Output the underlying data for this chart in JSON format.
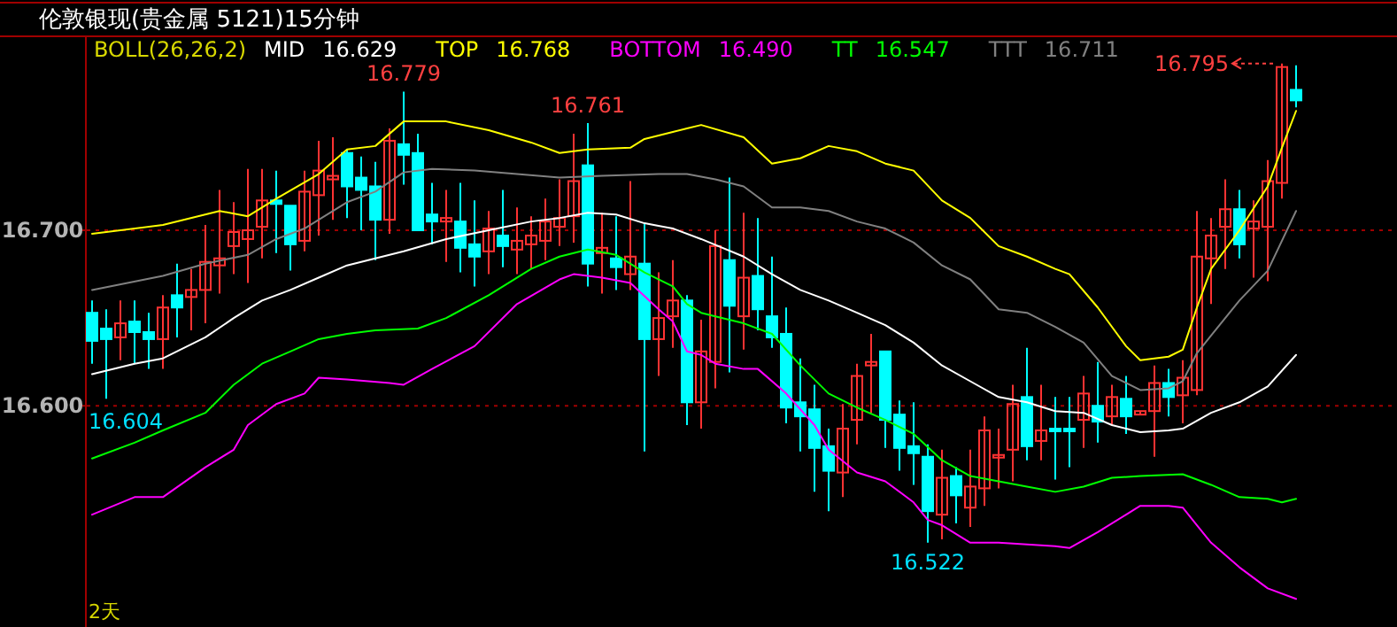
{
  "chart_data": {
    "type": "candlestick",
    "title": "伦敦银现(贵金属 5121)15分钟",
    "legend_title": "BOLL(26,26,2)",
    "legend": "top",
    "categories": [
      null,
      null,
      null,
      null,
      null,
      null,
      null,
      null,
      null,
      null,
      null,
      null,
      null,
      null,
      null,
      null,
      null,
      null,
      null,
      null,
      null,
      null,
      null,
      null,
      null,
      null,
      null,
      null,
      null,
      null,
      null,
      null,
      null,
      null,
      null,
      null,
      null,
      null,
      null,
      null,
      null,
      null,
      null,
      null,
      null,
      null,
      null,
      null,
      null,
      null,
      null,
      null,
      null,
      null,
      null,
      null,
      null,
      null,
      null,
      null,
      null,
      null,
      null,
      null,
      null,
      null,
      null,
      null,
      null,
      null,
      null,
      null,
      null,
      null,
      null,
      null,
      null,
      null,
      null,
      null,
      null,
      null,
      null,
      null,
      null,
      null
    ],
    "ohlc": [
      [
        16.653,
        16.66,
        16.624,
        16.637
      ],
      [
        16.644,
        16.655,
        16.604,
        16.638
      ],
      [
        16.639,
        16.66,
        16.626,
        16.647
      ],
      [
        16.648,
        16.66,
        16.624,
        16.642
      ],
      [
        16.642,
        16.653,
        16.621,
        16.638
      ],
      [
        16.638,
        16.663,
        16.621,
        16.656
      ],
      [
        16.663,
        16.681,
        16.639,
        16.656
      ],
      [
        16.662,
        16.678,
        16.643,
        16.666
      ],
      [
        16.666,
        16.703,
        16.647,
        16.682
      ],
      [
        16.68,
        16.723,
        16.664,
        16.684
      ],
      [
        16.691,
        16.716,
        16.675,
        16.699
      ],
      [
        16.695,
        16.735,
        16.67,
        16.7
      ],
      [
        16.702,
        16.735,
        16.684,
        16.717
      ],
      [
        16.717,
        16.734,
        16.687,
        16.715
      ],
      [
        16.714,
        16.714,
        16.677,
        16.692
      ],
      [
        16.694,
        16.734,
        16.688,
        16.722
      ],
      [
        16.72,
        16.751,
        16.697,
        16.734
      ],
      [
        16.729,
        16.753,
        16.706,
        16.731
      ],
      [
        16.744,
        16.746,
        16.707,
        16.725
      ],
      [
        16.73,
        16.742,
        16.7,
        16.723
      ],
      [
        16.725,
        16.739,
        16.683,
        16.706
      ],
      [
        16.706,
        16.758,
        16.698,
        16.751
      ],
      [
        16.749,
        16.779,
        16.726,
        16.743
      ],
      [
        16.744,
        16.755,
        16.7,
        16.7
      ],
      [
        16.709,
        16.727,
        16.692,
        16.705
      ],
      [
        16.705,
        16.723,
        16.682,
        16.707
      ],
      [
        16.705,
        16.727,
        16.676,
        16.69
      ],
      [
        16.692,
        16.717,
        16.668,
        16.685
      ],
      [
        16.688,
        16.711,
        16.675,
        16.701
      ],
      [
        16.697,
        16.723,
        16.679,
        16.691
      ],
      [
        16.689,
        16.713,
        16.675,
        16.694
      ],
      [
        16.692,
        16.708,
        16.678,
        16.697
      ],
      [
        16.694,
        16.718,
        16.683,
        16.705
      ],
      [
        16.702,
        16.729,
        16.691,
        16.707
      ],
      [
        16.708,
        16.755,
        16.693,
        16.728
      ],
      [
        16.737,
        16.761,
        16.668,
        16.681
      ],
      [
        16.687,
        16.71,
        16.664,
        16.69
      ],
      [
        16.684,
        16.708,
        16.666,
        16.679
      ],
      [
        16.675,
        16.728,
        16.666,
        16.685
      ],
      [
        16.681,
        16.704,
        16.574,
        16.638
      ],
      [
        16.638,
        16.676,
        16.617,
        16.65
      ],
      [
        16.651,
        16.683,
        16.633,
        16.66
      ],
      [
        16.66,
        16.663,
        16.589,
        16.602
      ],
      [
        16.602,
        16.649,
        16.587,
        16.631
      ],
      [
        16.625,
        16.7,
        16.61,
        16.691
      ],
      [
        16.683,
        16.73,
        16.619,
        16.657
      ],
      [
        16.651,
        16.71,
        16.632,
        16.673
      ],
      [
        16.674,
        16.707,
        16.643,
        16.655
      ],
      [
        16.651,
        16.685,
        16.633,
        16.639
      ],
      [
        16.641,
        16.656,
        16.59,
        16.599
      ],
      [
        16.602,
        16.627,
        16.574,
        16.594
      ],
      [
        16.598,
        16.612,
        16.551,
        16.576
      ],
      [
        16.577,
        16.587,
        16.54,
        16.563
      ],
      [
        16.562,
        16.601,
        16.548,
        16.587
      ],
      [
        16.592,
        16.624,
        16.578,
        16.617
      ],
      [
        16.623,
        16.641,
        16.596,
        16.625
      ],
      [
        16.631,
        16.631,
        16.576,
        16.592
      ],
      [
        16.595,
        16.603,
        16.563,
        16.576
      ],
      [
        16.577,
        16.602,
        16.555,
        16.573
      ],
      [
        16.571,
        16.578,
        16.522,
        16.54
      ],
      [
        16.538,
        16.575,
        16.524,
        16.559
      ],
      [
        16.56,
        16.565,
        16.533,
        16.549
      ],
      [
        16.542,
        16.575,
        16.531,
        16.554
      ],
      [
        16.553,
        16.594,
        16.543,
        16.586
      ],
      [
        16.571,
        16.587,
        16.553,
        16.572
      ],
      [
        16.575,
        16.612,
        16.557,
        16.601
      ],
      [
        16.605,
        16.633,
        16.569,
        16.577
      ],
      [
        16.58,
        16.612,
        16.569,
        16.586
      ],
      [
        16.587,
        16.605,
        16.558,
        16.586
      ],
      [
        16.587,
        16.605,
        16.565,
        16.586
      ],
      [
        16.592,
        16.617,
        16.576,
        16.607
      ],
      [
        16.6,
        16.625,
        16.579,
        16.591
      ],
      [
        16.594,
        16.612,
        16.589,
        16.605
      ],
      [
        16.604,
        16.617,
        16.584,
        16.594
      ],
      [
        16.595,
        16.597,
        16.595,
        16.597
      ],
      [
        16.597,
        16.623,
        16.571,
        16.613
      ],
      [
        16.613,
        16.621,
        16.594,
        16.605
      ],
      [
        16.606,
        16.626,
        16.59,
        16.616
      ],
      [
        16.609,
        16.711,
        16.606,
        16.685
      ],
      [
        16.684,
        16.707,
        16.658,
        16.697
      ],
      [
        16.702,
        16.729,
        16.678,
        16.712
      ],
      [
        16.712,
        16.723,
        16.684,
        16.692
      ],
      [
        16.701,
        16.717,
        16.673,
        16.705
      ],
      [
        16.702,
        16.74,
        16.671,
        16.728
      ],
      [
        16.727,
        16.795,
        16.718,
        16.793
      ],
      [
        16.78,
        16.794,
        16.77,
        16.774
      ]
    ],
    "colors": [
      "#00ffff",
      "#00ffff",
      "#ff3232",
      "#00ffff",
      "#00ffff",
      "#ff3232",
      "#00ffff",
      "#ff3232",
      "#ff3232",
      "#ff3232",
      "#ff3232",
      "#ff3232",
      "#ff3232",
      "#00ffff",
      "#00ffff",
      "#ff3232",
      "#ff3232",
      "#ff3232",
      "#00ffff",
      "#00ffff",
      "#00ffff",
      "#ff3232",
      "#00ffff",
      "#00ffff",
      "#00ffff",
      "#ff3232",
      "#00ffff",
      "#00ffff",
      "#ff3232",
      "#00ffff",
      "#ff3232",
      "#ff3232",
      "#ff3232",
      "#ff3232",
      "#ff3232",
      "#00ffff",
      "#ff3232",
      "#00ffff",
      "#ff3232",
      "#00ffff",
      "#ff3232",
      "#ff3232",
      "#00ffff",
      "#ff3232",
      "#ff3232",
      "#00ffff",
      "#ff3232",
      "#00ffff",
      "#00ffff",
      "#00ffff",
      "#00ffff",
      "#00ffff",
      "#00ffff",
      "#ff3232",
      "#ff3232",
      "#ff3232",
      "#00ffff",
      "#00ffff",
      "#00ffff",
      "#00ffff",
      "#ff3232",
      "#00ffff",
      "#ff3232",
      "#ff3232",
      "#ff3232",
      "#ff3232",
      "#00ffff",
      "#ff3232",
      "#00ffff",
      "#00ffff",
      "#ff3232",
      "#00ffff",
      "#ff3232",
      "#00ffff",
      "#ff3232",
      "#ff3232",
      "#00ffff",
      "#ff3232",
      "#ff3232",
      "#ff3232",
      "#ff3232",
      "#00ffff",
      "#ff3232",
      "#ff3232",
      "#ff3232",
      "#00ffff"
    ],
    "series": [
      {
        "name": "MID",
        "type": "line",
        "color": "#ffffff",
        "values": [
          16.618,
          null,
          null,
          16.624,
          null,
          16.627,
          null,
          null,
          16.639,
          null,
          16.65,
          null,
          16.66,
          null,
          16.666,
          null,
          16.673,
          null,
          16.68,
          null,
          16.684,
          null,
          16.688,
          null,
          null,
          16.695,
          null,
          null,
          16.7,
          null,
          null,
          16.705,
          null,
          16.707,
          null,
          16.71,
          null,
          16.709,
          null,
          16.704,
          null,
          16.701,
          null,
          16.695,
          null,
          null,
          16.685,
          null,
          16.675,
          null,
          16.666,
          null,
          16.66,
          null,
          16.653,
          null,
          16.646,
          null,
          16.636,
          null,
          16.623,
          null,
          16.614,
          null,
          16.605,
          null,
          16.602,
          null,
          16.597,
          null,
          16.596,
          null,
          16.589,
          null,
          16.585,
          null,
          16.586,
          16.587,
          null,
          16.596,
          null,
          16.602,
          null,
          16.611,
          null,
          16.629
        ]
      },
      {
        "name": "TOP",
        "type": "line",
        "color": "#ffff00",
        "values": [
          16.698,
          null,
          null,
          null,
          null,
          16.703,
          null,
          null,
          null,
          16.711,
          null,
          16.708,
          null,
          16.718,
          null,
          null,
          16.732,
          null,
          16.746,
          null,
          16.748,
          null,
          16.762,
          null,
          null,
          16.762,
          null,
          null,
          16.757,
          null,
          null,
          16.75,
          null,
          16.744,
          null,
          16.746,
          null,
          null,
          16.747,
          16.752,
          null,
          16.756,
          16.758,
          16.76,
          null,
          null,
          16.753,
          null,
          16.738,
          null,
          16.741,
          null,
          16.748,
          null,
          16.745,
          null,
          16.738,
          null,
          16.734,
          null,
          16.717,
          null,
          16.707,
          null,
          16.691,
          null,
          16.685,
          null,
          16.678,
          16.675,
          null,
          16.656,
          null,
          16.634,
          16.626,
          null,
          16.628,
          16.632,
          16.656,
          16.678,
          null,
          16.7,
          null,
          16.725,
          16.747,
          16.768
        ]
      },
      {
        "name": "BOTTOM",
        "type": "line",
        "color": "#ff00ff",
        "values": [
          16.538,
          null,
          null,
          16.548,
          null,
          16.548,
          null,
          null,
          16.565,
          null,
          16.575,
          16.589,
          null,
          16.601,
          null,
          16.607,
          16.616,
          null,
          16.615,
          null,
          null,
          16.613,
          16.612,
          null,
          16.621,
          null,
          null,
          16.634,
          null,
          null,
          16.658,
          null,
          null,
          16.672,
          16.675,
          null,
          16.673,
          null,
          16.67,
          null,
          16.655,
          16.648,
          16.631,
          16.629,
          16.624,
          null,
          16.621,
          16.621,
          null,
          16.607,
          null,
          16.589,
          16.575,
          null,
          16.562,
          null,
          16.557,
          null,
          16.545,
          16.535,
          16.532,
          null,
          16.522,
          null,
          16.522,
          null,
          16.521,
          null,
          16.52,
          16.519,
          null,
          16.528,
          null,
          16.538,
          16.543,
          null,
          16.543,
          16.542,
          16.532,
          16.522,
          null,
          16.508,
          null,
          16.496,
          null,
          16.49
        ]
      },
      {
        "name": "TT",
        "type": "line",
        "color": "#00ff00",
        "values": [
          16.57,
          null,
          null,
          16.579,
          null,
          16.586,
          null,
          null,
          16.596,
          null,
          16.612,
          null,
          16.624,
          null,
          16.631,
          null,
          16.638,
          null,
          16.641,
          null,
          16.643,
          null,
          null,
          16.644,
          null,
          16.65,
          null,
          null,
          16.663,
          null,
          null,
          16.678,
          null,
          16.685,
          null,
          16.689,
          null,
          16.686,
          null,
          16.676,
          null,
          16.668,
          16.658,
          16.653,
          16.651,
          null,
          16.647,
          null,
          16.641,
          null,
          16.623,
          null,
          16.607,
          null,
          16.599,
          null,
          16.592,
          null,
          16.584,
          null,
          16.569,
          null,
          16.56,
          null,
          16.557,
          null,
          16.554,
          null,
          16.551,
          null,
          16.554,
          null,
          16.559,
          null,
          16.56,
          null,
          null,
          16.561,
          null,
          16.555,
          null,
          16.548,
          null,
          16.547,
          16.545,
          16.547
        ]
      },
      {
        "name": "TTT",
        "type": "line",
        "color": "#808080",
        "values": [
          16.666,
          null,
          null,
          null,
          null,
          16.674,
          null,
          null,
          16.681,
          null,
          null,
          16.686,
          null,
          16.695,
          null,
          16.701,
          null,
          null,
          16.716,
          null,
          16.722,
          null,
          16.733,
          null,
          16.735,
          null,
          null,
          16.734,
          null,
          null,
          16.732,
          null,
          null,
          16.73,
          null,
          null,
          16.731,
          null,
          null,
          null,
          16.732,
          null,
          16.732,
          null,
          16.729,
          null,
          16.725,
          null,
          16.713,
          null,
          16.713,
          null,
          16.711,
          null,
          16.705,
          null,
          16.701,
          null,
          16.693,
          null,
          16.68,
          null,
          16.672,
          null,
          16.655,
          null,
          16.653,
          null,
          16.645,
          null,
          16.636,
          null,
          16.617,
          null,
          16.609,
          null,
          16.61,
          16.614,
          16.63,
          16.64,
          null,
          16.66,
          null,
          16.677,
          null,
          16.711
        ]
      }
    ],
    "ylim": [
      16.474,
      16.811
    ],
    "yticks": [
      {
        "value": 16.6,
        "label": "16.600"
      },
      {
        "value": 16.7,
        "label": "16.700"
      }
    ],
    "grid": "y",
    "annotations": [
      "16.629",
      "16.768",
      "16.490",
      "16.547",
      "16.711",
      "16.795",
      "16.604",
      "2天",
      {
        "text": "16.779",
        "y": 16.779
      },
      {
        "text": "16.761",
        "y": 16.761
      },
      {
        "text": "16.522",
        "y": 16.522
      }
    ]
  }
}
